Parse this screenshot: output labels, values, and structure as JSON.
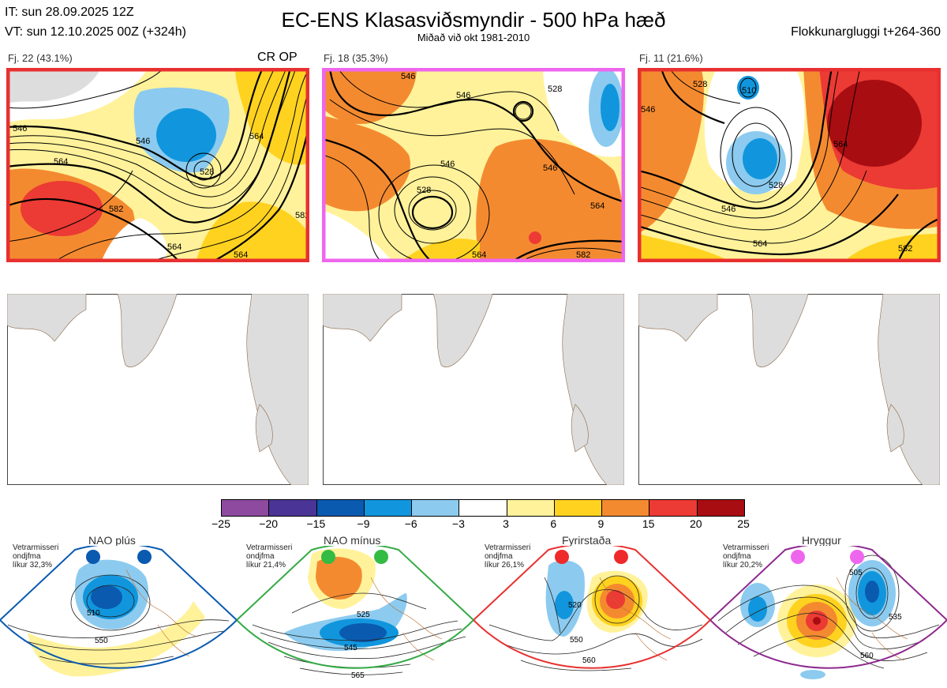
{
  "header": {
    "it": "IT: sun 28.09.2025 12Z",
    "vt": "VT: sun 12.10.2025 00Z  (+324h)",
    "title": "EC-ENS Klasasviðsmyndir - 500 hPa hæð",
    "subtitle": "Miðað við okt 1981-2010",
    "window": "Flokkunargluggi t+264-360"
  },
  "panels": [
    {
      "label": "Fj. 22 (43.1%)",
      "tag": "CR OP",
      "border": "#e83030",
      "contours": [
        "546",
        "546",
        "564",
        "582",
        "564",
        "564",
        "528",
        "564",
        "582"
      ]
    },
    {
      "label": "Fj. 18 (35.3%)",
      "tag": "",
      "border": "#ee66ee",
      "contours": [
        "546",
        "546",
        "528",
        "546",
        "528",
        "546",
        "564",
        "582",
        "564"
      ]
    },
    {
      "label": "Fj. 11 (21.6%)",
      "tag": "",
      "border": "#e83030",
      "contours": [
        "546",
        "528",
        "510",
        "528",
        "546",
        "564",
        "564",
        "582"
      ]
    }
  ],
  "colorbar": {
    "ticks": [
      "−25",
      "−20",
      "−15",
      "−9",
      "−6",
      "−3",
      "3",
      "6",
      "9",
      "15",
      "20",
      "25"
    ],
    "colors": [
      "#8e4a9e",
      "#4a3596",
      "#0a5ab0",
      "#1196dd",
      "#8ccbef",
      "#ffffff",
      "#fff29a",
      "#ffd21f",
      "#f48a30",
      "#ec3a34",
      "#a80d12"
    ]
  },
  "regimes": [
    {
      "name": "NAO plús",
      "note": [
        "Vetrarmisseri",
        "ondjfma",
        "líkur 32,3%"
      ],
      "border": "#0a5ab0",
      "dot": "#0a5ab0",
      "labels": [
        "510",
        "550"
      ]
    },
    {
      "name": "NAO mínus",
      "note": [
        "Vetrarmisseri",
        "ondjfma",
        "líkur 21,4%"
      ],
      "border": "#33aa44",
      "dot": "#33bb44",
      "labels": [
        "525",
        "545",
        "565"
      ]
    },
    {
      "name": "Fyrirstaða",
      "note": [
        "Vetrarmisseri",
        "ondjfma",
        "líkur 26,1%"
      ],
      "border": "#e83030",
      "dot": "#ee2a2a",
      "labels": [
        "520",
        "550",
        "560"
      ]
    },
    {
      "name": "Hryggur",
      "note": [
        "Vetrarmisseri",
        "ondjfma",
        "líkur 20,2%"
      ],
      "border": "#8e2a8e",
      "dot": "#ee66ee",
      "labels": [
        "505",
        "535",
        "560"
      ]
    }
  ]
}
